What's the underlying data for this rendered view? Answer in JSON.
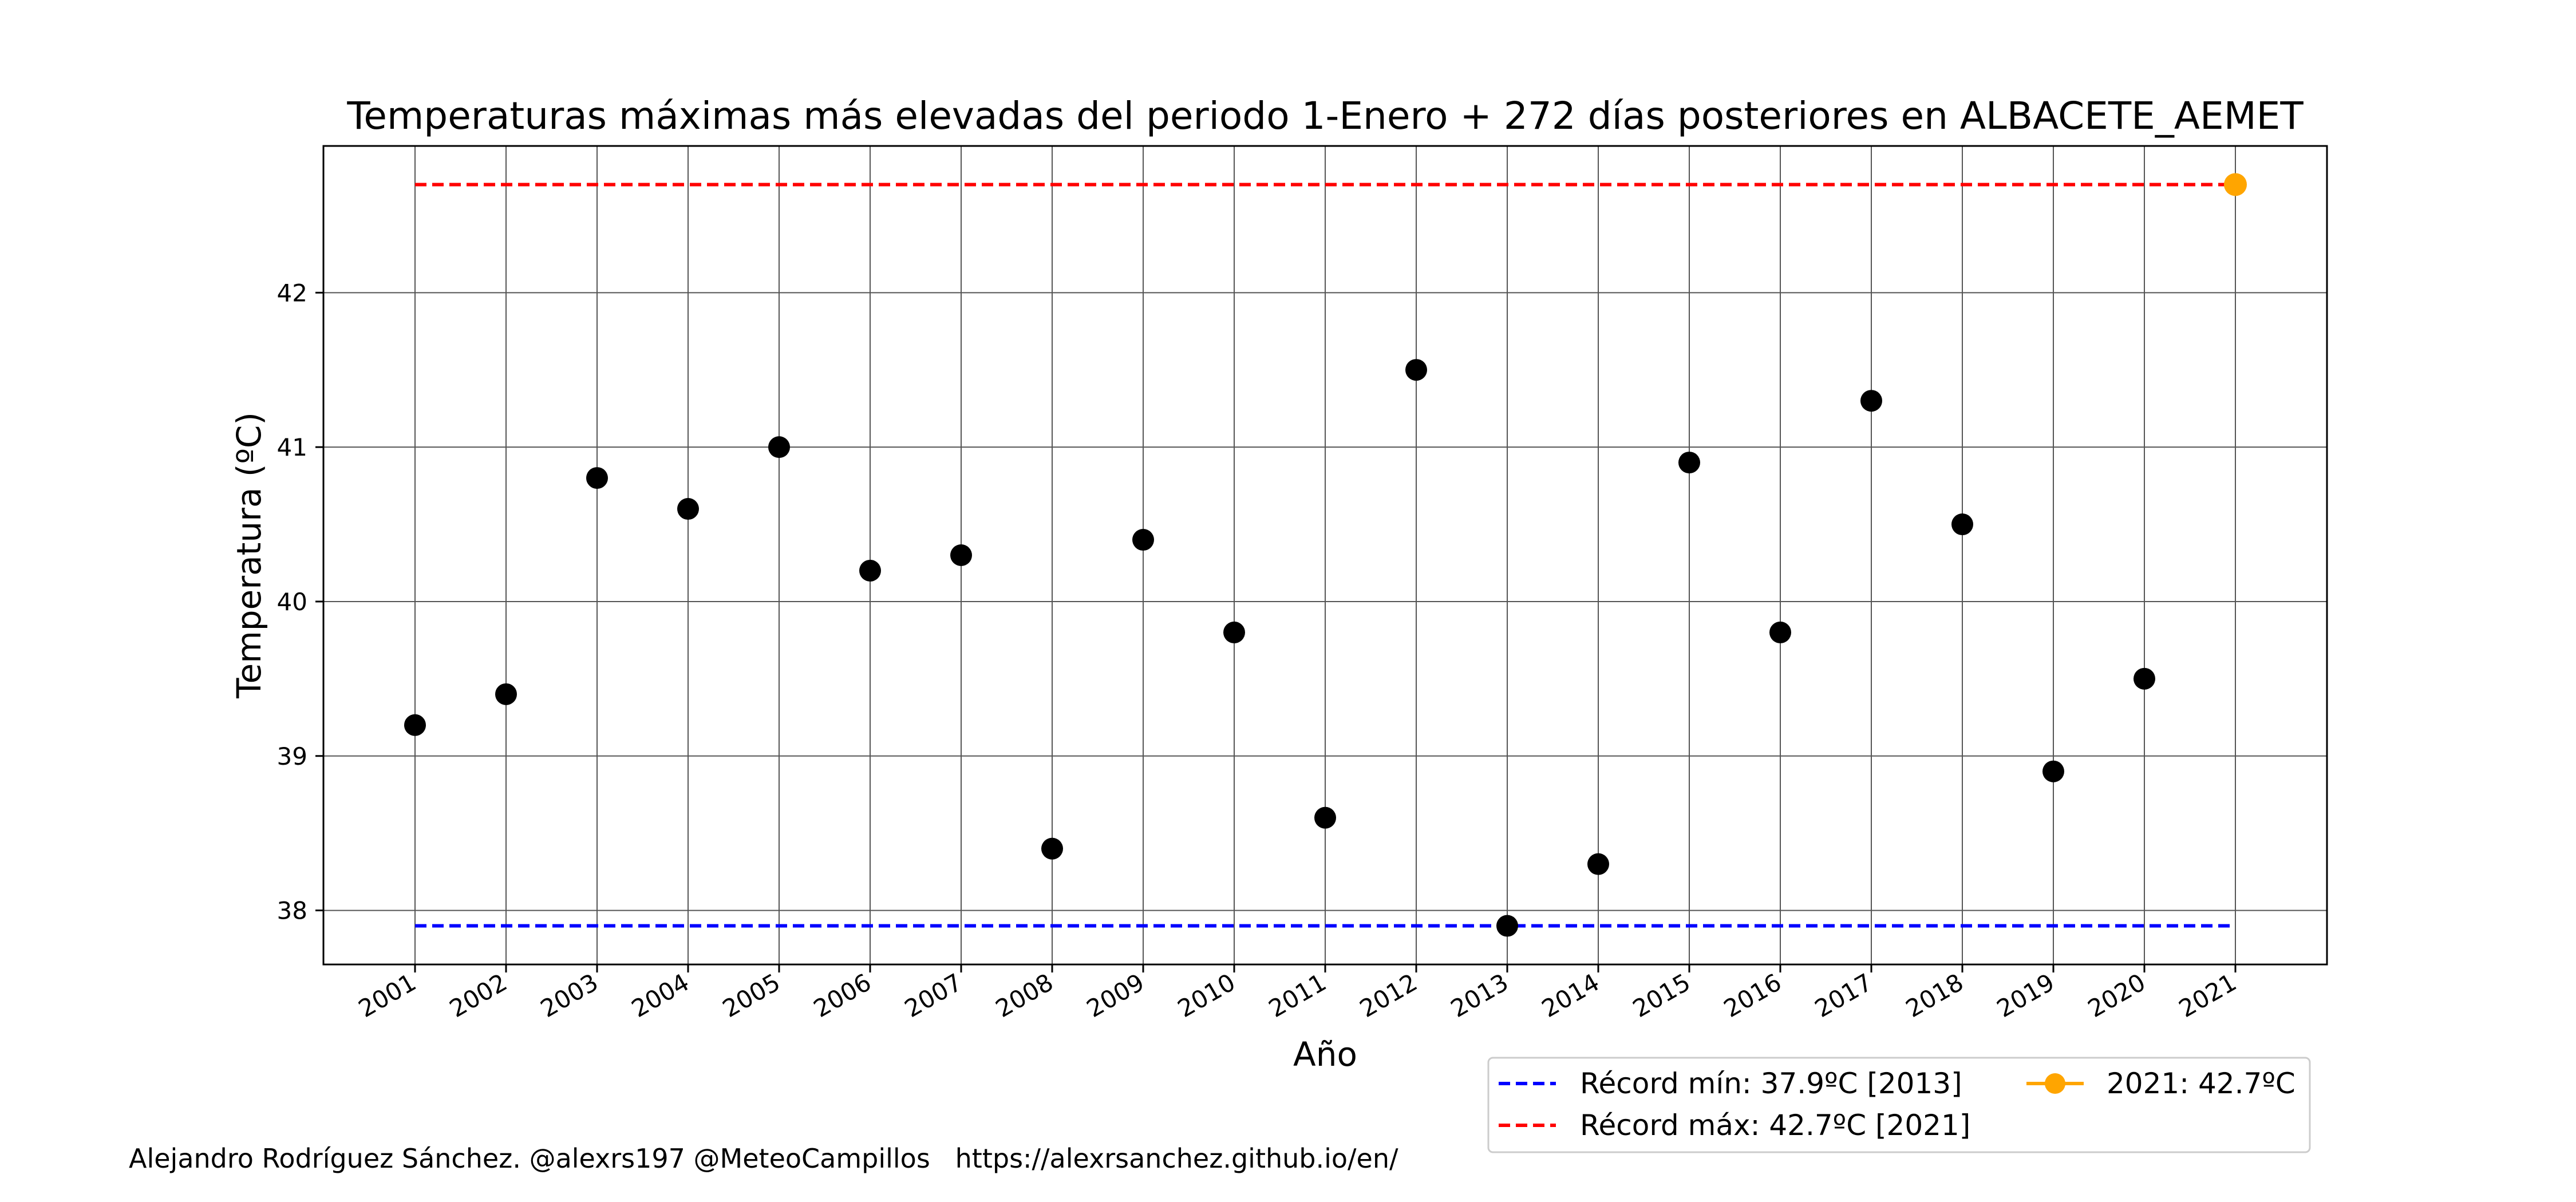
{
  "chart_data": {
    "type": "scatter",
    "title": "Temperaturas máximas más elevadas del periodo 1-Enero + 272 días posteriores en ALBACETE_AEMET",
    "xlabel": "Año",
    "ylabel": "Temperatura (ºC)",
    "x": [
      "2001",
      "2002",
      "2003",
      "2004",
      "2005",
      "2006",
      "2007",
      "2008",
      "2009",
      "2010",
      "2011",
      "2012",
      "2013",
      "2014",
      "2015",
      "2016",
      "2017",
      "2018",
      "2019",
      "2020",
      "2021"
    ],
    "series": [
      {
        "values": [
          39.2,
          39.4,
          40.8,
          40.6,
          41.0,
          40.2,
          40.3,
          38.4,
          40.4,
          39.8,
          38.6,
          41.5,
          37.9,
          38.3,
          40.9,
          39.8,
          41.3,
          40.5,
          38.9,
          39.5,
          null
        ],
        "color": "#000000"
      },
      {
        "name": "2021: 42.7ºC",
        "values": [
          null,
          null,
          null,
          null,
          null,
          null,
          null,
          null,
          null,
          null,
          null,
          null,
          null,
          null,
          null,
          null,
          null,
          null,
          null,
          null,
          42.7
        ],
        "color": "#FFA500"
      }
    ],
    "reference_lines": [
      {
        "name": "Récord mín: 37.9ºC [2013]",
        "value": 37.9,
        "color": "#0000FF",
        "style": "dashed"
      },
      {
        "name": "Récord máx: 42.7ºC [2021]",
        "value": 42.7,
        "color": "#FF0000",
        "style": "dashed"
      }
    ],
    "yticks": [
      "38",
      "39",
      "40",
      "41",
      "42"
    ],
    "ylim": [
      37.65,
      42.95
    ],
    "grid": true,
    "legend": "below-right"
  },
  "footer": {
    "credit": "Alejandro Rodríguez Sánchez. @alexrs197 @MeteoCampillos   https://alexrsanchez.github.io/en/"
  }
}
